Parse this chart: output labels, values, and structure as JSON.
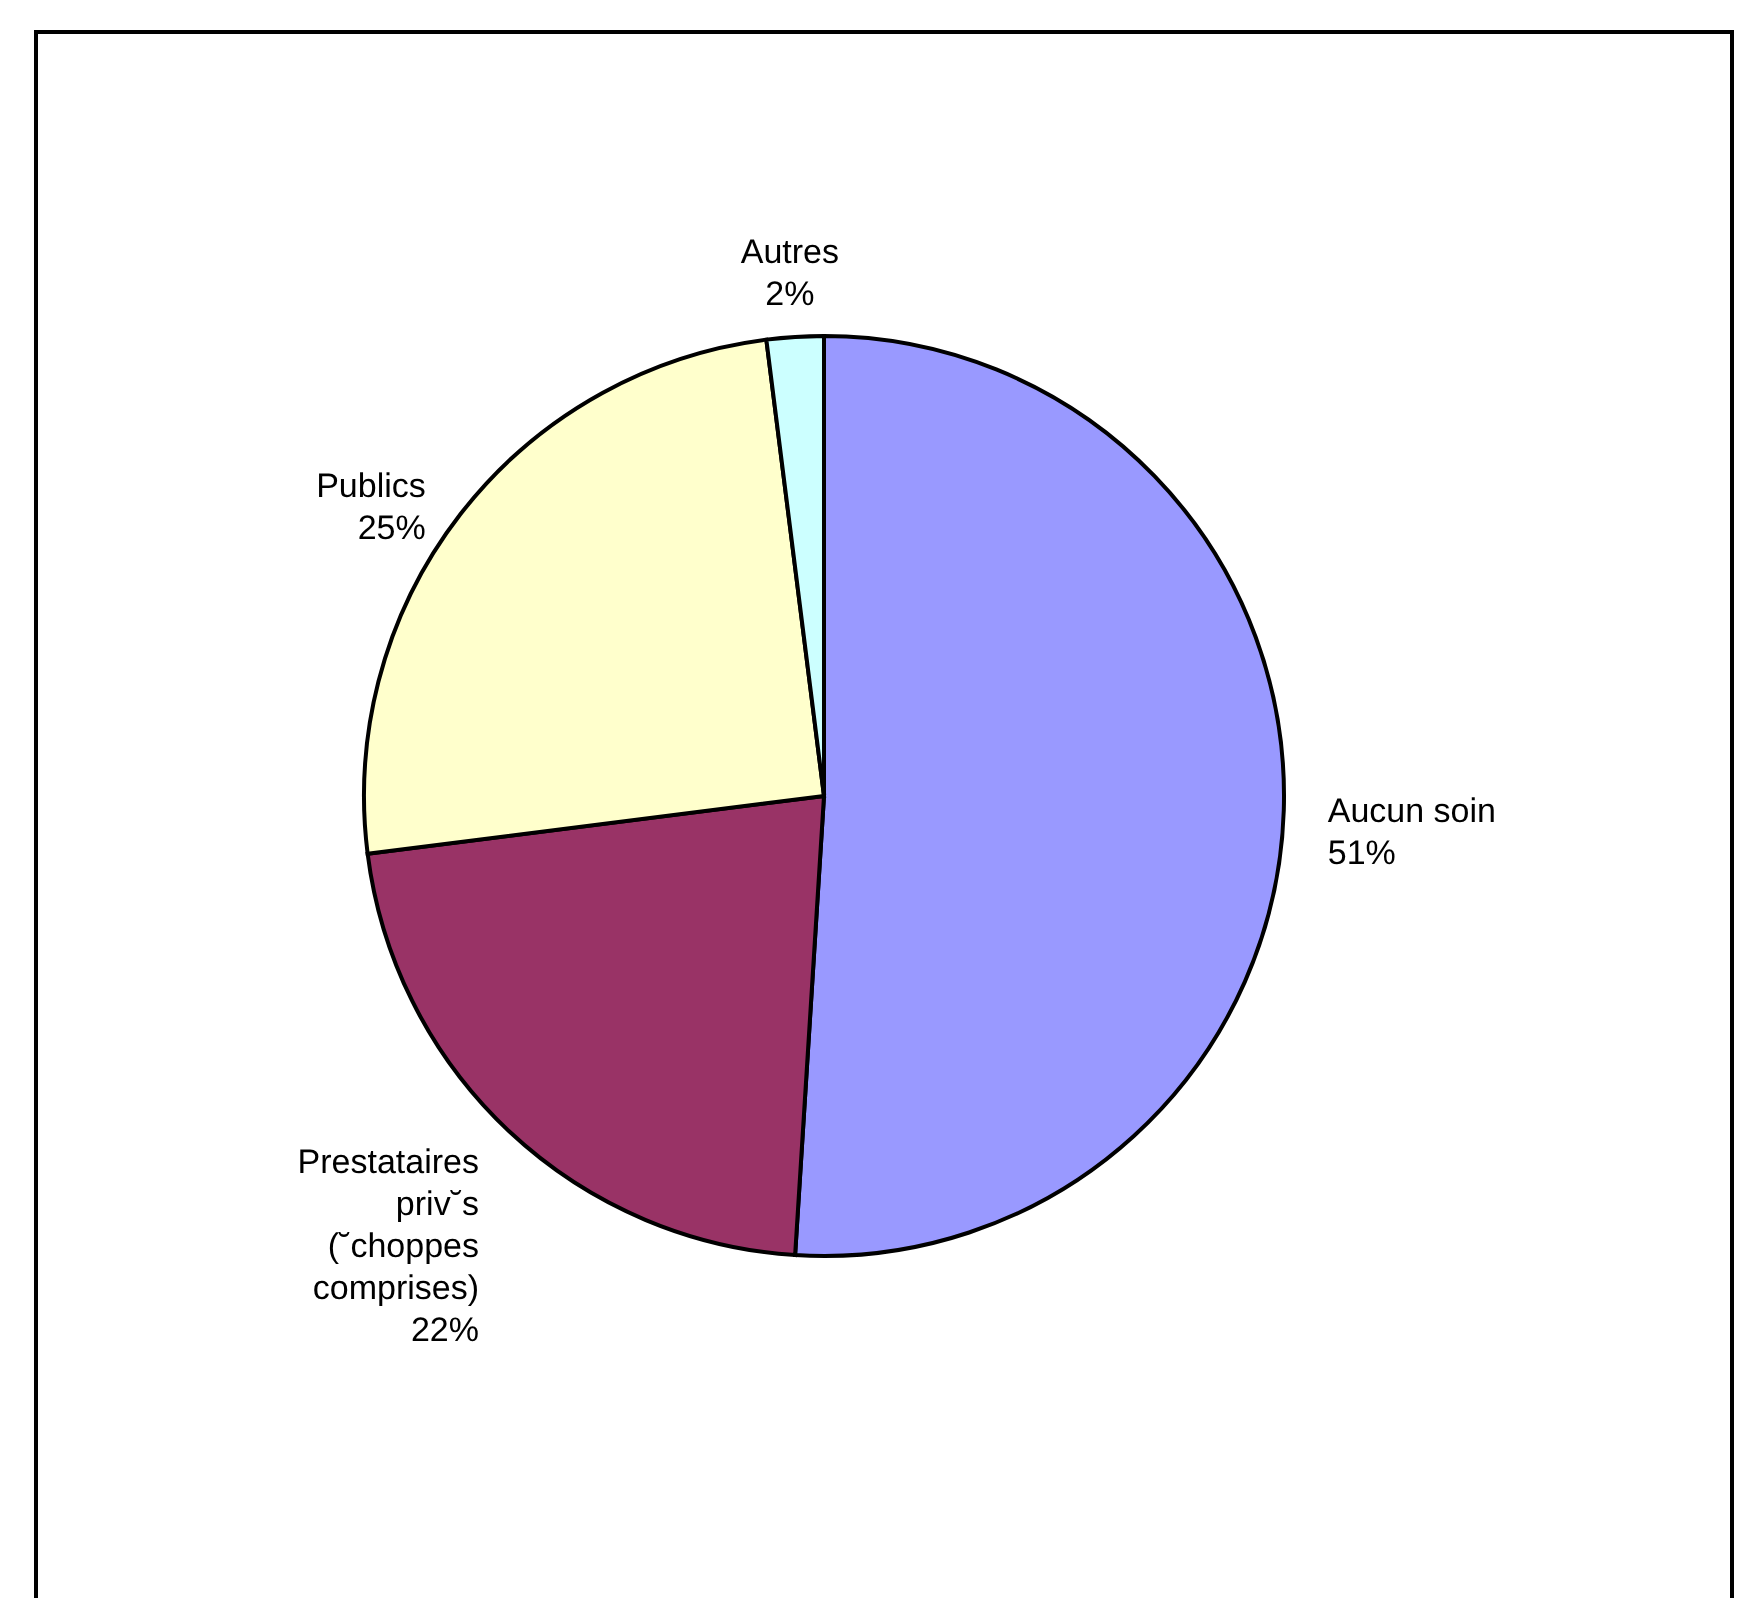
{
  "chart_data": {
    "type": "pie",
    "categories": [
      "Aucun soin",
      "Prestataires priv˘s (˘choppes comprises)",
      "Publics",
      "Autres"
    ],
    "values": [
      51,
      22,
      25,
      2
    ],
    "value_labels": [
      "51%",
      "22%",
      "25%",
      "2%"
    ],
    "colors": [
      "#9999ff",
      "#993366",
      "#ffffcc",
      "#ccffff"
    ]
  }
}
